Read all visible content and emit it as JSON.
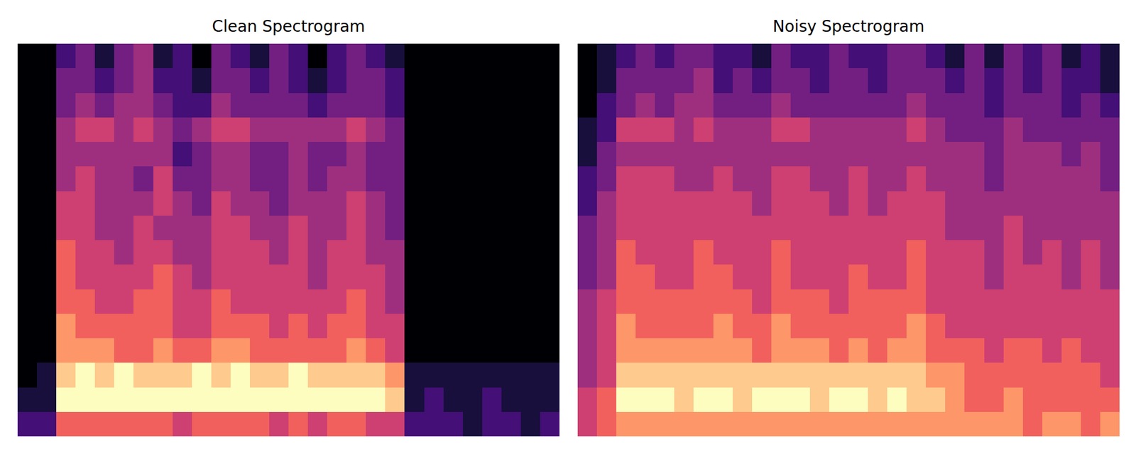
{
  "chart_data": [
    {
      "type": "heatmap",
      "title": "Clean Spectrogram",
      "tick_labels": false,
      "cells": [
        [
          0,
          0,
          2,
          3,
          1,
          3,
          4,
          1,
          2,
          0,
          3,
          2,
          1,
          3,
          2,
          0,
          2,
          3,
          2,
          1,
          0,
          0,
          0,
          0,
          0,
          0,
          0,
          0
        ],
        [
          0,
          0,
          3,
          3,
          2,
          3,
          4,
          2,
          2,
          1,
          3,
          3,
          2,
          3,
          2,
          1,
          2,
          3,
          3,
          2,
          0,
          0,
          0,
          0,
          0,
          0,
          0,
          0
        ],
        [
          0,
          0,
          3,
          4,
          3,
          4,
          4,
          3,
          2,
          2,
          4,
          3,
          3,
          3,
          3,
          2,
          3,
          3,
          3,
          2,
          0,
          0,
          0,
          0,
          0,
          0,
          0,
          0
        ],
        [
          0,
          0,
          4,
          5,
          5,
          4,
          5,
          4,
          3,
          4,
          5,
          5,
          4,
          4,
          4,
          4,
          4,
          5,
          4,
          3,
          0,
          0,
          0,
          0,
          0,
          0,
          0,
          0
        ],
        [
          0,
          0,
          4,
          4,
          4,
          4,
          4,
          4,
          2,
          3,
          4,
          4,
          3,
          3,
          4,
          3,
          3,
          4,
          3,
          3,
          0,
          0,
          0,
          0,
          0,
          0,
          0,
          0
        ],
        [
          0,
          0,
          4,
          5,
          4,
          4,
          3,
          5,
          3,
          3,
          4,
          4,
          3,
          3,
          4,
          3,
          4,
          4,
          3,
          3,
          0,
          0,
          0,
          0,
          0,
          0,
          0,
          0
        ],
        [
          0,
          0,
          5,
          5,
          4,
          4,
          4,
          5,
          4,
          3,
          5,
          4,
          4,
          3,
          4,
          4,
          4,
          5,
          4,
          3,
          0,
          0,
          0,
          0,
          0,
          0,
          0,
          0
        ],
        [
          0,
          0,
          5,
          5,
          4,
          4,
          5,
          4,
          4,
          4,
          5,
          5,
          4,
          4,
          5,
          4,
          4,
          5,
          4,
          3,
          0,
          0,
          0,
          0,
          0,
          0,
          0,
          0
        ],
        [
          0,
          0,
          6,
          5,
          5,
          4,
          5,
          5,
          4,
          4,
          5,
          5,
          5,
          4,
          5,
          4,
          5,
          5,
          4,
          4,
          0,
          0,
          0,
          0,
          0,
          0,
          0,
          0
        ],
        [
          0,
          0,
          6,
          5,
          5,
          5,
          5,
          6,
          5,
          4,
          5,
          5,
          5,
          5,
          5,
          4,
          5,
          5,
          5,
          4,
          0,
          0,
          0,
          0,
          0,
          0,
          0,
          0
        ],
        [
          0,
          0,
          6,
          6,
          5,
          5,
          6,
          6,
          5,
          5,
          6,
          5,
          5,
          5,
          5,
          5,
          5,
          6,
          5,
          4,
          0,
          0,
          0,
          0,
          0,
          0,
          0,
          0
        ],
        [
          0,
          0,
          7,
          6,
          6,
          6,
          6,
          6,
          5,
          5,
          6,
          6,
          6,
          5,
          6,
          5,
          6,
          6,
          5,
          5,
          0,
          0,
          0,
          0,
          0,
          0,
          0,
          0
        ],
        [
          0,
          0,
          7,
          7,
          7,
          6,
          6,
          7,
          6,
          6,
          7,
          7,
          6,
          6,
          6,
          6,
          6,
          7,
          6,
          5,
          0,
          0,
          0,
          0,
          0,
          0,
          0,
          0
        ],
        [
          0,
          1,
          8,
          9,
          8,
          9,
          8,
          8,
          8,
          9,
          8,
          9,
          8,
          8,
          9,
          8,
          8,
          8,
          8,
          7,
          1,
          1,
          1,
          1,
          1,
          1,
          1,
          1
        ],
        [
          1,
          1,
          9,
          9,
          9,
          9,
          9,
          9,
          9,
          9,
          9,
          9,
          9,
          9,
          9,
          9,
          9,
          9,
          9,
          8,
          1,
          2,
          1,
          1,
          2,
          1,
          1,
          1
        ],
        [
          2,
          2,
          6,
          6,
          6,
          6,
          6,
          6,
          5,
          6,
          6,
          6,
          6,
          5,
          6,
          5,
          6,
          6,
          5,
          5,
          2,
          2,
          2,
          1,
          2,
          2,
          1,
          2
        ]
      ]
    },
    {
      "type": "heatmap",
      "title": "Noisy Spectrogram",
      "tick_labels": false,
      "cells": [
        [
          0,
          1,
          2,
          3,
          2,
          3,
          3,
          2,
          2,
          1,
          3,
          2,
          2,
          3,
          2,
          2,
          3,
          3,
          2,
          1,
          3,
          1,
          3,
          2,
          3,
          1,
          2,
          1
        ],
        [
          0,
          1,
          3,
          3,
          3,
          3,
          4,
          2,
          3,
          2,
          3,
          3,
          2,
          3,
          3,
          2,
          3,
          3,
          3,
          2,
          3,
          2,
          3,
          2,
          3,
          2,
          2,
          1
        ],
        [
          0,
          2,
          3,
          4,
          3,
          4,
          4,
          3,
          3,
          3,
          4,
          3,
          3,
          3,
          3,
          3,
          3,
          4,
          3,
          3,
          3,
          2,
          3,
          3,
          3,
          2,
          3,
          2
        ],
        [
          1,
          2,
          5,
          5,
          5,
          4,
          5,
          4,
          4,
          4,
          5,
          5,
          4,
          4,
          4,
          4,
          4,
          5,
          4,
          3,
          3,
          3,
          4,
          3,
          3,
          3,
          3,
          3
        ],
        [
          1,
          3,
          4,
          4,
          4,
          4,
          4,
          4,
          4,
          4,
          4,
          4,
          4,
          4,
          4,
          4,
          4,
          4,
          4,
          4,
          4,
          3,
          4,
          4,
          4,
          3,
          4,
          3
        ],
        [
          2,
          3,
          5,
          5,
          5,
          4,
          4,
          5,
          4,
          4,
          5,
          5,
          4,
          4,
          5,
          4,
          4,
          5,
          4,
          4,
          4,
          3,
          4,
          4,
          4,
          4,
          4,
          3
        ],
        [
          2,
          4,
          5,
          5,
          5,
          5,
          5,
          5,
          5,
          4,
          5,
          5,
          5,
          4,
          5,
          4,
          5,
          5,
          5,
          4,
          4,
          4,
          4,
          4,
          4,
          4,
          4,
          4
        ],
        [
          3,
          4,
          5,
          5,
          5,
          5,
          5,
          5,
          5,
          5,
          5,
          5,
          5,
          5,
          5,
          5,
          5,
          5,
          5,
          4,
          4,
          4,
          5,
          4,
          4,
          4,
          4,
          4
        ],
        [
          3,
          4,
          6,
          5,
          5,
          5,
          6,
          5,
          5,
          5,
          6,
          5,
          5,
          5,
          5,
          5,
          5,
          6,
          5,
          5,
          5,
          4,
          5,
          4,
          5,
          4,
          5,
          4
        ],
        [
          3,
          4,
          6,
          6,
          5,
          5,
          6,
          6,
          5,
          5,
          6,
          5,
          5,
          5,
          6,
          5,
          5,
          6,
          5,
          5,
          5,
          4,
          5,
          5,
          5,
          4,
          5,
          4
        ],
        [
          4,
          5,
          6,
          6,
          6,
          6,
          6,
          6,
          6,
          5,
          6,
          6,
          6,
          5,
          6,
          6,
          6,
          6,
          5,
          5,
          5,
          5,
          5,
          5,
          5,
          5,
          5,
          5
        ],
        [
          4,
          5,
          7,
          6,
          6,
          6,
          6,
          7,
          6,
          6,
          7,
          6,
          6,
          6,
          6,
          6,
          6,
          7,
          6,
          5,
          5,
          5,
          5,
          5,
          5,
          5,
          5,
          5
        ],
        [
          4,
          5,
          7,
          7,
          7,
          7,
          7,
          7,
          7,
          6,
          7,
          7,
          7,
          6,
          7,
          6,
          7,
          7,
          6,
          6,
          6,
          5,
          6,
          6,
          5,
          6,
          5,
          5
        ],
        [
          4,
          5,
          8,
          8,
          8,
          8,
          8,
          8,
          8,
          8,
          8,
          8,
          8,
          8,
          8,
          8,
          8,
          8,
          7,
          7,
          6,
          6,
          6,
          6,
          6,
          6,
          6,
          5
        ],
        [
          5,
          6,
          9,
          9,
          9,
          8,
          9,
          9,
          8,
          9,
          9,
          9,
          8,
          9,
          9,
          8,
          9,
          8,
          8,
          7,
          6,
          6,
          7,
          6,
          6,
          6,
          6,
          6
        ],
        [
          5,
          6,
          7,
          7,
          7,
          7,
          7,
          7,
          7,
          7,
          7,
          7,
          7,
          7,
          7,
          7,
          7,
          7,
          7,
          7,
          7,
          7,
          7,
          6,
          7,
          7,
          6,
          7
        ]
      ]
    }
  ]
}
